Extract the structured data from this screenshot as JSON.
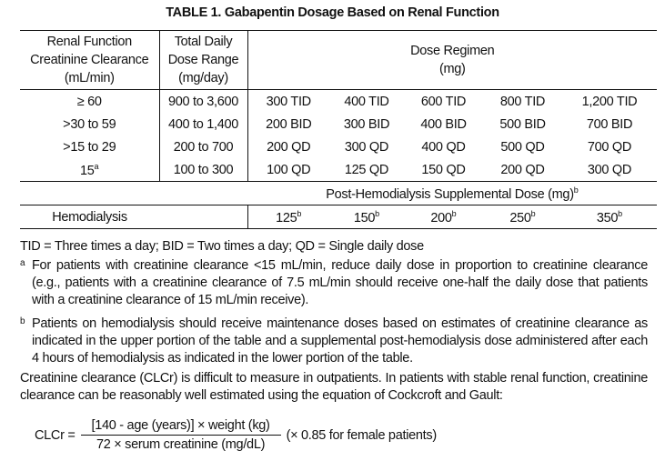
{
  "title": "TABLE 1. Gabapentin Dosage Based on Renal Function",
  "table": {
    "headers": [
      [
        "Renal Function",
        "Creatinine Clearance",
        "(mL/min)"
      ],
      [
        "Total Daily",
        "Dose Range",
        "(mg/day)"
      ],
      [
        "Dose Regimen",
        "(mg)"
      ]
    ],
    "rows": [
      [
        {
          "text": "≥ 60"
        },
        {
          "text": "900 to 3,600"
        },
        {
          "text": "300 TID"
        },
        {
          "text": "400 TID"
        },
        {
          "text": "600 TID"
        },
        {
          "text": "800 TID"
        },
        {
          "text": "1,200 TID"
        }
      ],
      [
        {
          "text": ">30 to 59"
        },
        {
          "text": "400 to 1,400"
        },
        {
          "text": "200 BID"
        },
        {
          "text": "300 BID"
        },
        {
          "text": "400 BID"
        },
        {
          "text": "500 BID"
        },
        {
          "text": "700 BID"
        }
      ],
      [
        {
          "text": ">15 to 29"
        },
        {
          "text": "200 to 700"
        },
        {
          "text": "200 QD"
        },
        {
          "text": "300 QD"
        },
        {
          "text": "400 QD"
        },
        {
          "text": "500 QD"
        },
        {
          "text": "700 QD"
        }
      ],
      [
        {
          "text": "15",
          "sup": "a"
        },
        {
          "text": "100 to 300"
        },
        {
          "text": "100 QD"
        },
        {
          "text": "125 QD"
        },
        {
          "text": "150 QD"
        },
        {
          "text": "200 QD"
        },
        {
          "text": "300 QD"
        }
      ]
    ],
    "supplemental_header": {
      "text": "Post-Hemodialysis Supplemental Dose (mg)",
      "sup": "b"
    },
    "hemodialysis": {
      "label": "Hemodialysis",
      "doses": [
        {
          "text": "125",
          "sup": "b"
        },
        {
          "text": "150",
          "sup": "b"
        },
        {
          "text": "200",
          "sup": "b"
        },
        {
          "text": "250",
          "sup": "b"
        },
        {
          "text": "350",
          "sup": "b"
        }
      ]
    }
  },
  "notes": {
    "abbreviations": "TID = Three times a day; BID = Two times a day; QD = Single daily dose",
    "footnotes": [
      {
        "mark": "a",
        "text": "For patients with creatinine clearance <15 mL/min, reduce daily dose in proportion to creatinine clearance (e.g., patients with a creatinine clearance of 7.5 mL/min should receive one-half the daily dose that patients with a creatinine clearance of 15 mL/min receive)."
      },
      {
        "mark": "b",
        "text": "Patients on hemodialysis should receive maintenance doses based on estimates of creatinine clearance as indicated in the upper portion of the table and a supplemental post-hemodialysis dose administered after each 4 hours of hemodialysis as indicated in the lower portion of the table."
      }
    ]
  },
  "paragraph": "Creatinine clearance (CLCr) is difficult to measure in outpatients. In patients with stable renal function, creatinine clearance can be reasonably well estimated using the equation of Cockcroft and Gault:",
  "formula": {
    "lhs": "CLCr =",
    "numerator": "[140 - age (years)] × weight (kg)",
    "denominator": "72 × serum creatinine (mg/dL)",
    "suffix": "(× 0.85 for female patients)"
  }
}
